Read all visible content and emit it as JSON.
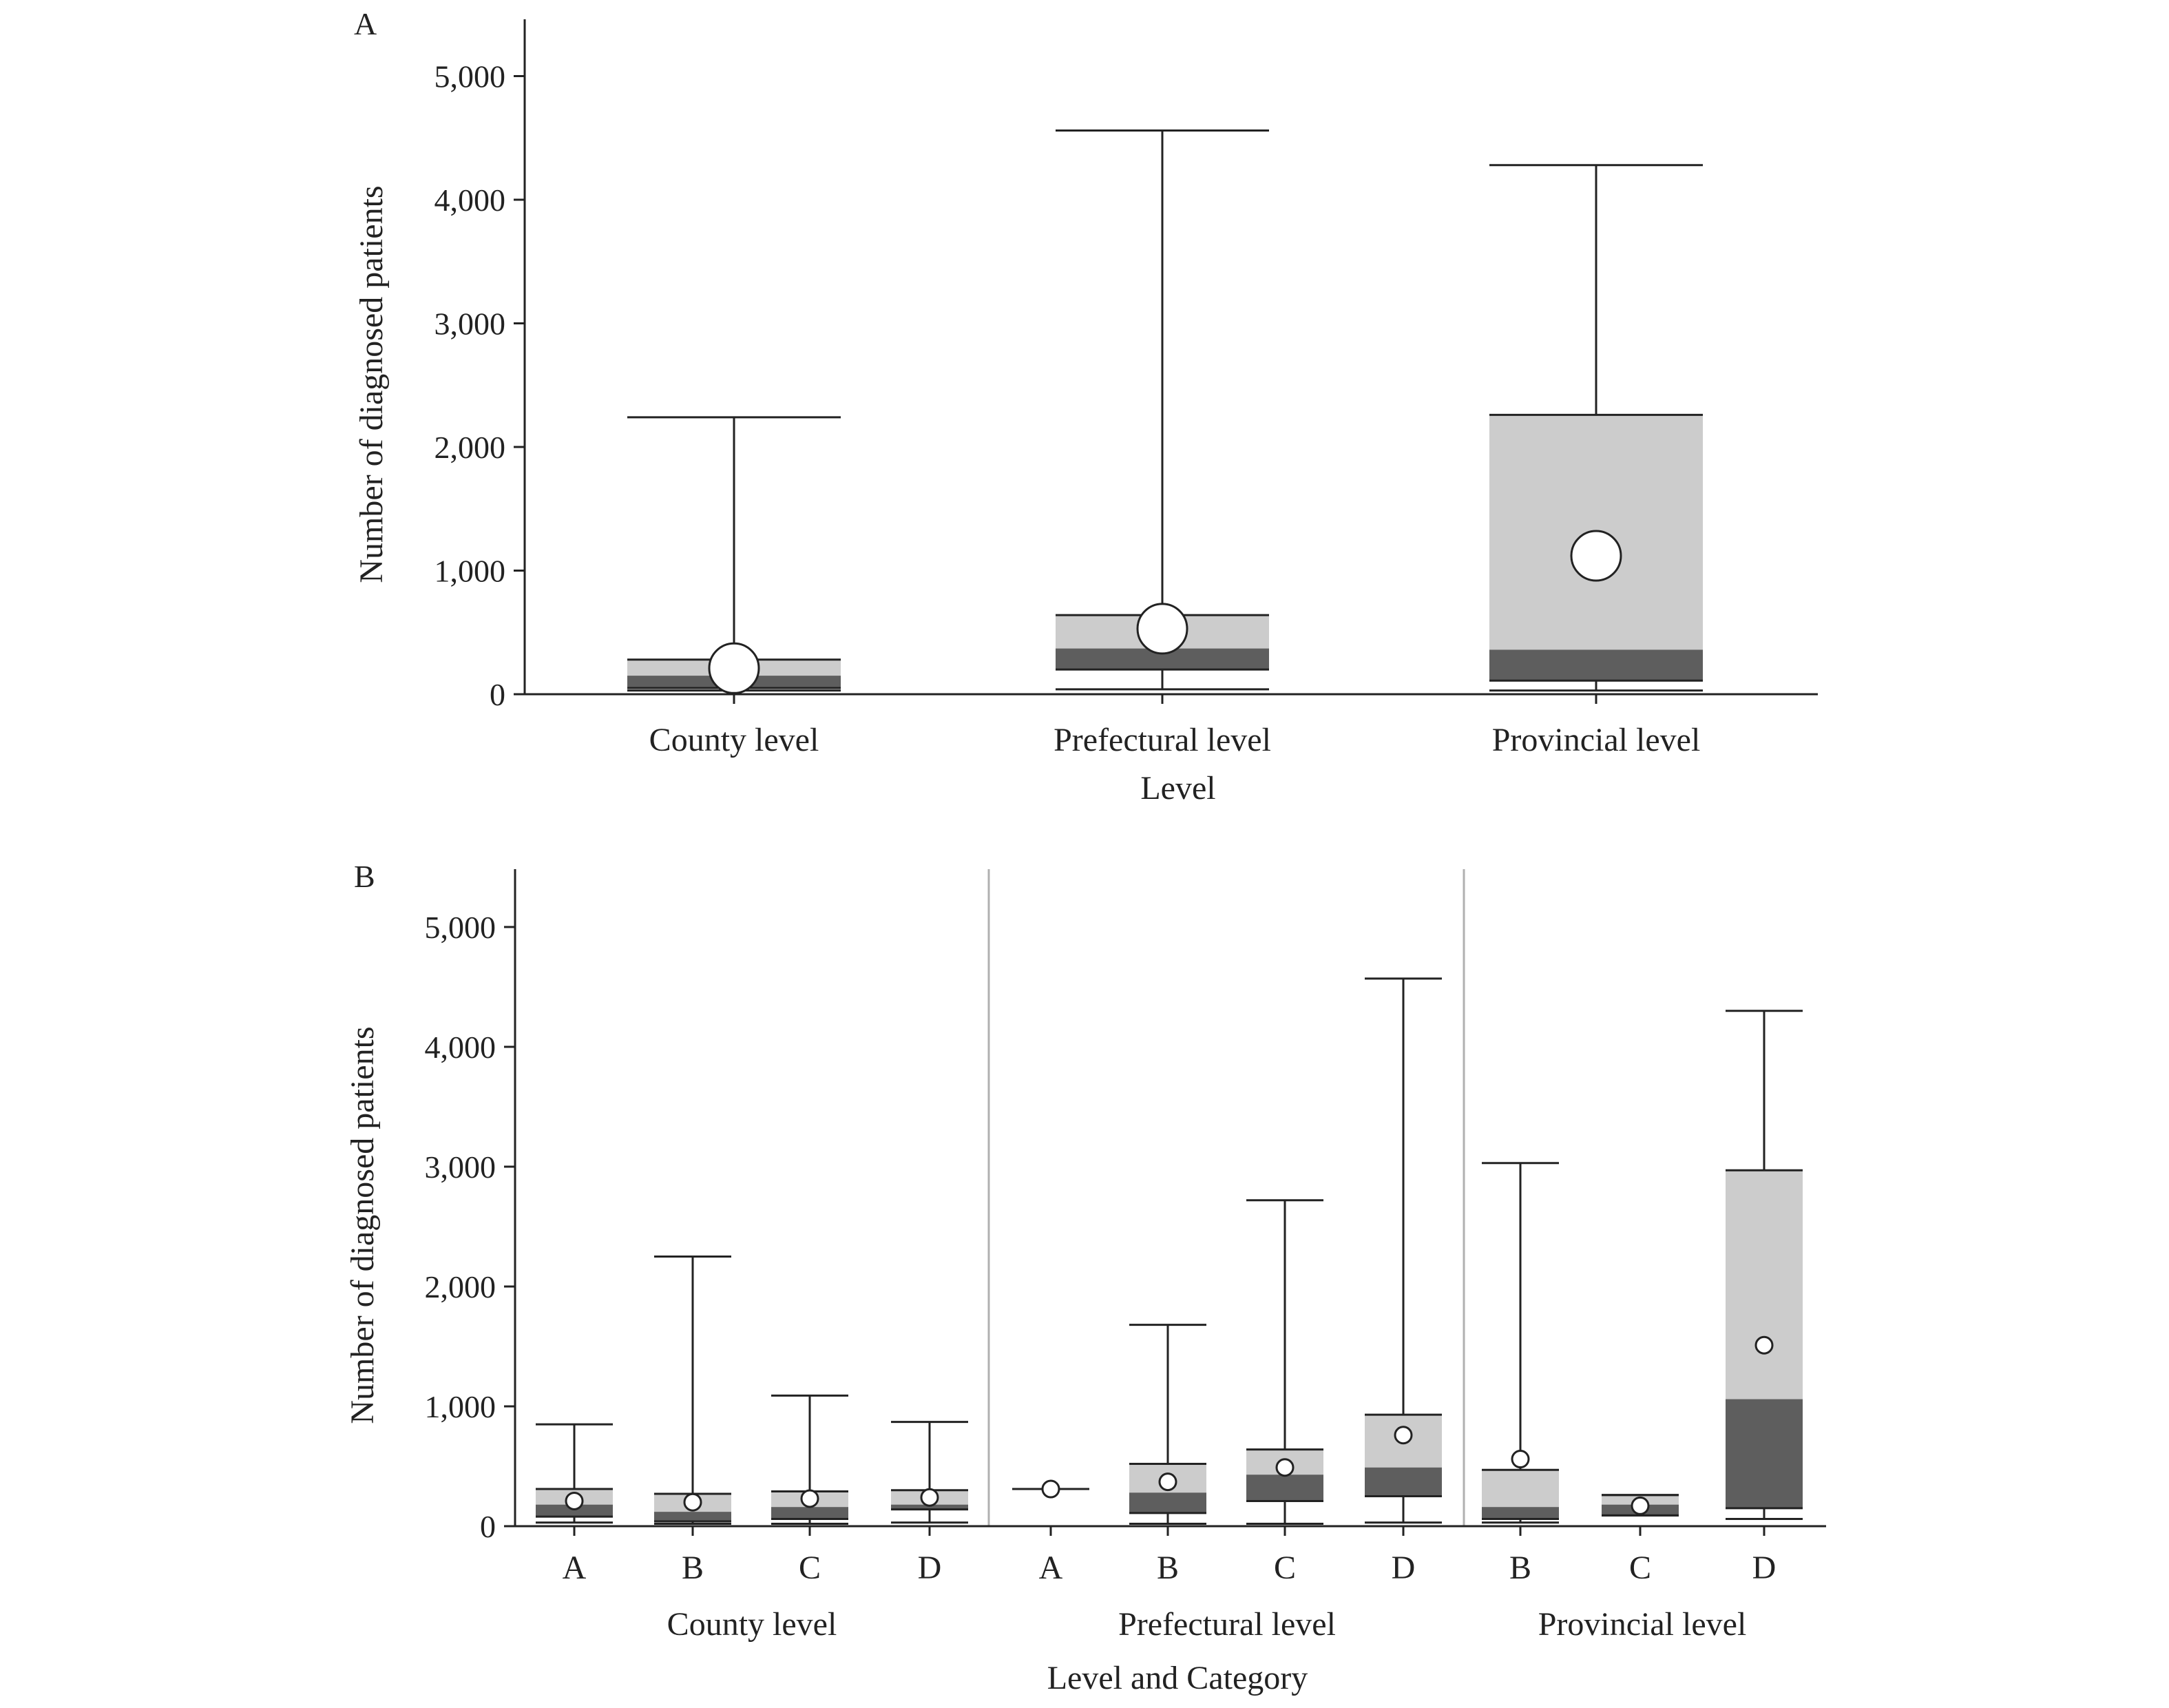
{
  "colors": {
    "ink": "#222222",
    "box_upper": "#cccccc",
    "box_lower": "#5e5e5e",
    "mean_marker_fill": "#ffffff",
    "separator": "#b0b0b0"
  },
  "chart_data": [
    {
      "panel": "A",
      "type": "box",
      "ylabel": "Number of diagnosed patients",
      "xlabel": "Level",
      "ylim": [
        0,
        5500
      ],
      "yticks": [
        0,
        1000,
        2000,
        3000,
        4000,
        5000
      ],
      "ytick_labels": [
        "0",
        "1,000",
        "2,000",
        "3,000",
        "4,000",
        "5,000"
      ],
      "categories": [
        "County level",
        "Prefectural level",
        "Provincial level"
      ],
      "boxes": [
        {
          "min": 30,
          "q1": 50,
          "median": 150,
          "q3": 280,
          "max": 2240,
          "mean": 210
        },
        {
          "min": 40,
          "q1": 200,
          "median": 370,
          "q3": 640,
          "max": 4560,
          "mean": 530
        },
        {
          "min": 30,
          "q1": 110,
          "median": 360,
          "q3": 2260,
          "max": 4280,
          "mean": 1120
        }
      ]
    },
    {
      "panel": "B",
      "type": "box",
      "ylabel": "Number of diagnosed patients",
      "xlabel": "Level and Category",
      "ylim": [
        0,
        5500
      ],
      "yticks": [
        0,
        1000,
        2000,
        3000,
        4000,
        5000
      ],
      "ytick_labels": [
        "0",
        "1,000",
        "2,000",
        "3,000",
        "4,000",
        "5,000"
      ],
      "groups": [
        {
          "label": "County level",
          "categories": [
            "A",
            "B",
            "C",
            "D"
          ]
        },
        {
          "label": "Prefectural level",
          "categories": [
            "A",
            "B",
            "C",
            "D"
          ]
        },
        {
          "label": "Provincial level",
          "categories": [
            "B",
            "C",
            "D"
          ]
        }
      ],
      "boxes": [
        {
          "group": "County level",
          "category": "A",
          "min": 30,
          "q1": 80,
          "median": 180,
          "q3": 310,
          "max": 850,
          "mean": 210
        },
        {
          "group": "County level",
          "category": "B",
          "min": 20,
          "q1": 40,
          "median": 120,
          "q3": 270,
          "max": 2250,
          "mean": 200
        },
        {
          "group": "County level",
          "category": "C",
          "min": 20,
          "q1": 60,
          "median": 160,
          "q3": 290,
          "max": 1090,
          "mean": 230
        },
        {
          "group": "County level",
          "category": "D",
          "min": 30,
          "q1": 140,
          "median": 180,
          "q3": 300,
          "max": 870,
          "mean": 240
        },
        {
          "group": "Prefectural level",
          "category": "A",
          "min": 310,
          "q1": 310,
          "median": 310,
          "q3": 310,
          "max": 310,
          "mean": 310
        },
        {
          "group": "Prefectural level",
          "category": "B",
          "min": 20,
          "q1": 110,
          "median": 280,
          "q3": 520,
          "max": 1680,
          "mean": 370
        },
        {
          "group": "Prefectural level",
          "category": "C",
          "min": 20,
          "q1": 210,
          "median": 430,
          "q3": 640,
          "max": 2720,
          "mean": 490
        },
        {
          "group": "Prefectural level",
          "category": "D",
          "min": 30,
          "q1": 250,
          "median": 490,
          "q3": 930,
          "max": 4570,
          "mean": 760
        },
        {
          "group": "Provincial level",
          "category": "B",
          "min": 30,
          "q1": 60,
          "median": 160,
          "q3": 470,
          "max": 3030,
          "mean": 560
        },
        {
          "group": "Provincial level",
          "category": "C",
          "min": 90,
          "q1": 90,
          "median": 180,
          "q3": 260,
          "max": 260,
          "mean": 170
        },
        {
          "group": "Provincial level",
          "category": "D",
          "min": 60,
          "q1": 150,
          "median": 1060,
          "q3": 2970,
          "max": 4300,
          "mean": 1510
        }
      ]
    }
  ]
}
